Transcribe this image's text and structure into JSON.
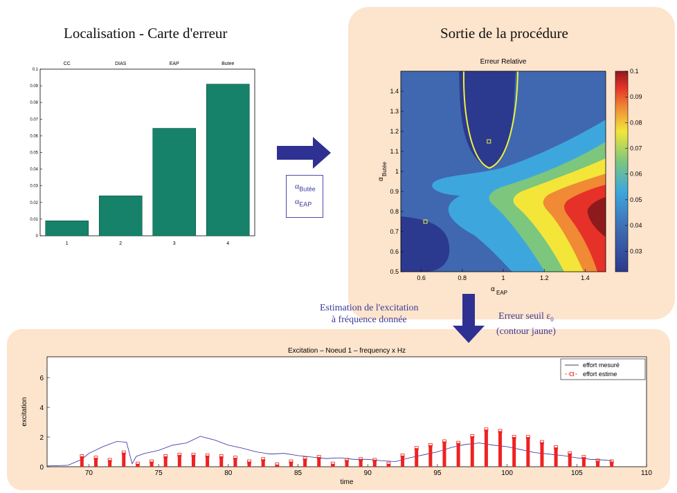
{
  "left_title": "Localisation - Carte d'erreur",
  "right_title": "Sortie de la procédure",
  "annotation_left": [
    "Estimation de l'excitation",
    "à fréquence donnée"
  ],
  "annotation_right": [
    "Erreur  seuil ε",
    "0",
    "(contour jaune)"
  ],
  "param_box": {
    "alpha": "α",
    "sub1": "Butée",
    "sub2": "EAP"
  },
  "colors": {
    "panel": "#fde4cc",
    "bar": "#17826a",
    "arrow": "#2e3192",
    "yellow": "#f2f23a",
    "measured": "#2a2aa0",
    "estimated": "#ee2222"
  },
  "chart_data": [
    {
      "type": "bar",
      "categories": [
        "1",
        "2",
        "3",
        "4"
      ],
      "top_labels": [
        "CC",
        "DIAS",
        "EAP",
        "Butee"
      ],
      "values": [
        0.009,
        0.024,
        0.0645,
        0.091
      ],
      "ylim": [
        0,
        0.1
      ],
      "yticks": [
        "0",
        "0.01",
        "0.02",
        "0.03",
        "0.04",
        "0.05",
        "0.06",
        "0.07",
        "0.08",
        "0.09",
        "0.1"
      ]
    },
    {
      "type": "heatmap",
      "title": "Erreur Relative",
      "xlabel": "α",
      "xlabel_sub": "EAP",
      "ylabel": "α",
      "ylabel_sub": "Butée",
      "xlim": [
        0.5,
        1.5
      ],
      "ylim": [
        0.5,
        1.5
      ],
      "xticks": [
        "0.6",
        "0.8",
        "1",
        "1.2",
        "1.4"
      ],
      "yticks": [
        "0.5",
        "0.6",
        "0.7",
        "0.8",
        "0.9",
        "1",
        "1.1",
        "1.2",
        "1.3",
        "1.4"
      ],
      "colorbar_ticks": [
        "0.03",
        "0.04",
        "0.05",
        "0.06",
        "0.07",
        "0.08",
        "0.09",
        "0.1"
      ],
      "markers": [
        {
          "x": 0.93,
          "y": 1.15
        },
        {
          "x": 0.62,
          "y": 0.75
        }
      ]
    },
    {
      "type": "line",
      "title": "Excitation – Noeud 1 – frequency x Hz",
      "xlabel": "time",
      "ylabel": "excitation",
      "xlim": [
        67,
        110
      ],
      "ylim": [
        0,
        7.4
      ],
      "xticks": [
        "70",
        "75",
        "80",
        "85",
        "90",
        "95",
        "100",
        "105",
        "110"
      ],
      "yticks": [
        "0",
        "2",
        "4",
        "6"
      ],
      "legend_position": "top-right",
      "series": [
        {
          "name": "effort mesuré",
          "x": [
            67,
            68.5,
            69.5,
            70,
            71,
            72,
            72.7,
            73.1,
            73.4,
            74,
            75,
            76,
            77,
            78,
            79,
            80,
            81,
            82,
            83,
            84,
            85,
            86,
            87,
            88,
            89,
            90,
            91,
            92,
            93,
            94,
            95,
            96,
            97,
            98,
            99,
            100,
            101,
            102,
            103,
            104,
            105,
            106,
            107,
            107.5
          ],
          "y": [
            0.05,
            0.1,
            0.5,
            0.9,
            1.35,
            1.7,
            1.65,
            0.2,
            0.7,
            0.9,
            1.1,
            1.45,
            1.6,
            2.05,
            1.8,
            1.45,
            1.25,
            1.0,
            0.85,
            0.9,
            0.75,
            0.65,
            0.55,
            0.6,
            0.5,
            0.5,
            0.4,
            0.35,
            0.6,
            0.8,
            1.0,
            1.3,
            1.5,
            1.6,
            1.45,
            1.35,
            1.15,
            0.95,
            0.85,
            0.75,
            0.6,
            0.5,
            0.45,
            0.4
          ]
        },
        {
          "name": "effort estime",
          "x": [
            69.5,
            70.5,
            71.5,
            72.5,
            73.5,
            74.5,
            75.5,
            76.5,
            77.5,
            78.5,
            79.5,
            80.5,
            81.5,
            82.5,
            83.5,
            84.5,
            85.5,
            86.5,
            87.5,
            88.5,
            89.5,
            90.5,
            91.5,
            92.5,
            93.5,
            94.5,
            95.5,
            96.5,
            97.5,
            98.5,
            99.5,
            100.5,
            101.5,
            102.5,
            103.5,
            104.5,
            105.5,
            106.5,
            107.5
          ],
          "y": [
            0.7,
            0.6,
            0.45,
            0.95,
            0.2,
            0.35,
            0.7,
            0.8,
            0.8,
            0.75,
            0.7,
            0.6,
            0.35,
            0.5,
            0.15,
            0.35,
            0.55,
            0.65,
            0.2,
            0.45,
            0.5,
            0.45,
            0.2,
            0.75,
            1.25,
            1.45,
            1.7,
            1.6,
            2.05,
            2.5,
            2.4,
            2.0,
            2.0,
            1.65,
            1.3,
            0.9,
            0.65,
            0.4,
            0.35
          ]
        }
      ]
    }
  ]
}
